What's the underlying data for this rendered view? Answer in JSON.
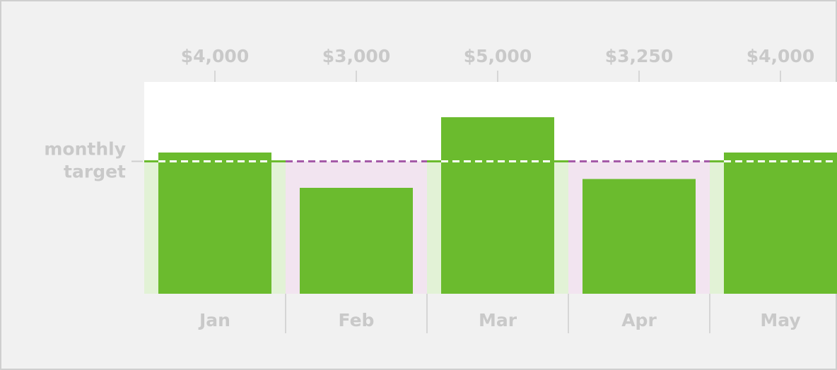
{
  "chart_data": {
    "type": "bar",
    "categories": [
      "Jan",
      "Feb",
      "Mar",
      "Apr",
      "May"
    ],
    "values": [
      4000,
      3000,
      5000,
      3250,
      4000
    ],
    "value_labels": [
      "$4,000",
      "$3,000",
      "$5,000",
      "$3,250",
      "$4,000"
    ],
    "color": "#6bbb2e",
    "ylim": [
      0,
      6000
    ],
    "target": {
      "value": 3750,
      "label": "monthly target"
    },
    "above_color": "#e2f2d6",
    "below_color": "#f2e4f0",
    "below_line_color": "#a45aa8"
  }
}
